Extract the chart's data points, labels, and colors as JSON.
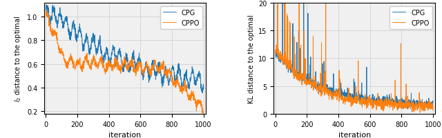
{
  "left_ylabel": "$l_2$ distance to the optimal",
  "right_ylabel": "KL distance to the optimal",
  "xlabel": "iteration",
  "cpg_color": "#1f77b4",
  "cppo_color": "#ff7f0e",
  "n_iter": 1001,
  "left_ylim": [
    0.175,
    1.12
  ],
  "right_ylim": [
    0.0,
    20.0
  ],
  "left_yticks": [
    0.2,
    0.4,
    0.6,
    0.8,
    1.0
  ],
  "right_yticks": [
    0.0,
    5.0,
    10.0,
    15.0,
    20.0
  ],
  "xticks": [
    0,
    200,
    400,
    600,
    800,
    1000
  ],
  "linewidth": 0.7,
  "grid_color": "#cccccc",
  "background_color": "#f0f0f0"
}
